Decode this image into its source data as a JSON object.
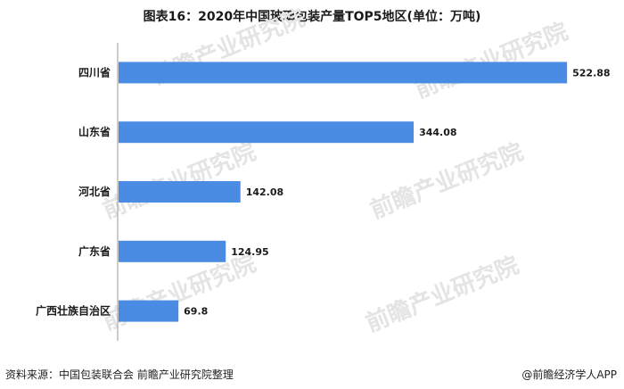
{
  "chart_data": {
    "type": "bar",
    "orientation": "horizontal",
    "title": "图表16：2020年中国玻璃包装产量TOP5地区(单位：万吨)",
    "categories": [
      "四川省",
      "山东省",
      "河北省",
      "广东省",
      "广西壮族自治区"
    ],
    "values": [
      522.88,
      344.08,
      142.08,
      124.95,
      69.8
    ],
    "value_labels": [
      "522.88",
      "344.08",
      "142.08",
      "124.95",
      "69.8"
    ],
    "xlim": [
      0,
      530
    ],
    "grid": false,
    "bar_color": "#4a8ce3"
  },
  "watermark_text": "前瞻产业研究院",
  "footer": {
    "source": "资料来源：中国包装联合会 前瞻产业研究院整理",
    "brand": "@前瞻经济学人APP"
  }
}
